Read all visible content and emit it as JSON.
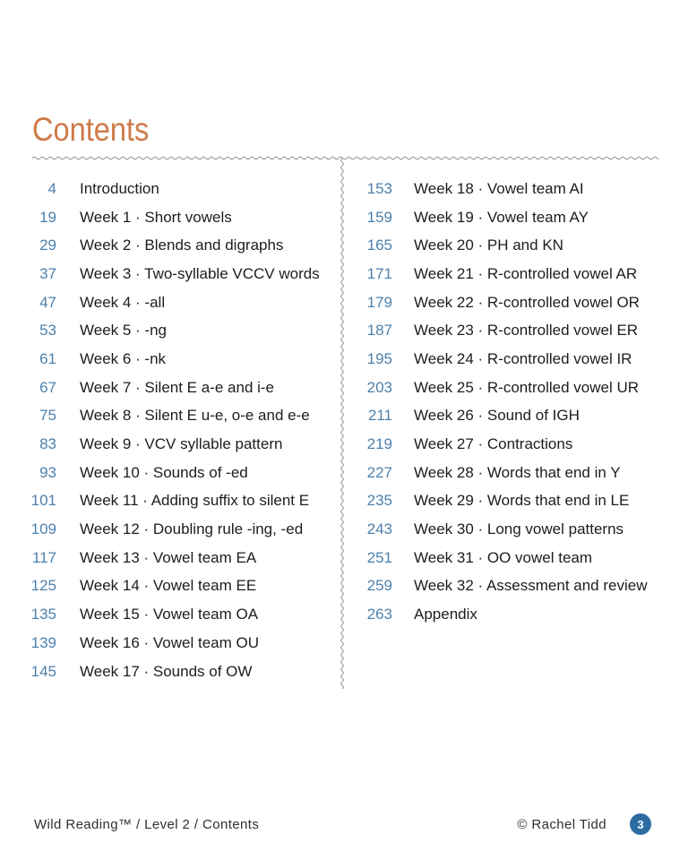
{
  "header": {
    "title": "Contents"
  },
  "toc": {
    "left_column": [
      {
        "page": "4",
        "label": "Introduction"
      },
      {
        "page": "19",
        "label": "Week 1 · Short vowels"
      },
      {
        "page": "29",
        "label": "Week 2 · Blends and digraphs"
      },
      {
        "page": "37",
        "label": "Week 3 · Two-syllable VCCV words"
      },
      {
        "page": "47",
        "label": "Week 4 · -all"
      },
      {
        "page": "53",
        "label": "Week 5 · -ng"
      },
      {
        "page": "61",
        "label": "Week 6 · -nk"
      },
      {
        "page": "67",
        "label": "Week 7 · Silent E a-e and i-e"
      },
      {
        "page": "75",
        "label": "Week 8 · Silent E u-e, o-e and e-e"
      },
      {
        "page": "83",
        "label": "Week 9 · VCV syllable pattern"
      },
      {
        "page": "93",
        "label": "Week 10 · Sounds of -ed"
      },
      {
        "page": "101",
        "label": "Week 11 · Adding suffix to silent E"
      },
      {
        "page": "109",
        "label": "Week 12 · Doubling rule -ing, -ed"
      },
      {
        "page": "117",
        "label": "Week 13 · Vowel team EA"
      },
      {
        "page": "125",
        "label": "Week 14 · Vowel team EE"
      },
      {
        "page": "135",
        "label": "Week 15 · Vowel team OA"
      },
      {
        "page": "139",
        "label": "Week 16 · Vowel team OU"
      },
      {
        "page": "145",
        "label": "Week 17 · Sounds of OW"
      }
    ],
    "right_column": [
      {
        "page": "153",
        "label": "Week 18 · Vowel team AI"
      },
      {
        "page": "159",
        "label": "Week 19 · Vowel team AY"
      },
      {
        "page": "165",
        "label": "Week 20 · PH and KN"
      },
      {
        "page": "171",
        "label": "Week 21 · R-controlled vowel AR"
      },
      {
        "page": "179",
        "label": "Week 22 · R-controlled vowel OR"
      },
      {
        "page": "187",
        "label": "Week 23 · R-controlled vowel ER"
      },
      {
        "page": "195",
        "label": "Week 24 · R-controlled vowel IR"
      },
      {
        "page": "203",
        "label": "Week 25 · R-controlled vowel UR"
      },
      {
        "page": "211",
        "label": "Week 26 · Sound of IGH"
      },
      {
        "page": "219",
        "label": "Week 27 · Contractions"
      },
      {
        "page": "227",
        "label": "Week 28 · Words that end in Y"
      },
      {
        "page": "235",
        "label": "Week 29 · Words that end in LE"
      },
      {
        "page": "243",
        "label": "Week 30 · Long vowel patterns"
      },
      {
        "page": "251",
        "label": "Week 31 · OO vowel team"
      },
      {
        "page": "259",
        "label": "Week 32 · Assessment and review"
      },
      {
        "page": "263",
        "label": "Appendix"
      }
    ]
  },
  "footer": {
    "left_text": "Wild Reading™ / Level 2 / Contents",
    "copyright": "© Rachel Tidd",
    "page_number": "3"
  },
  "colors": {
    "accent-orange": "#ce7b49",
    "number-blue": "#4d81ac",
    "badge-blue": "#2d6ba3",
    "divider-gray": "#8d8d8d"
  }
}
